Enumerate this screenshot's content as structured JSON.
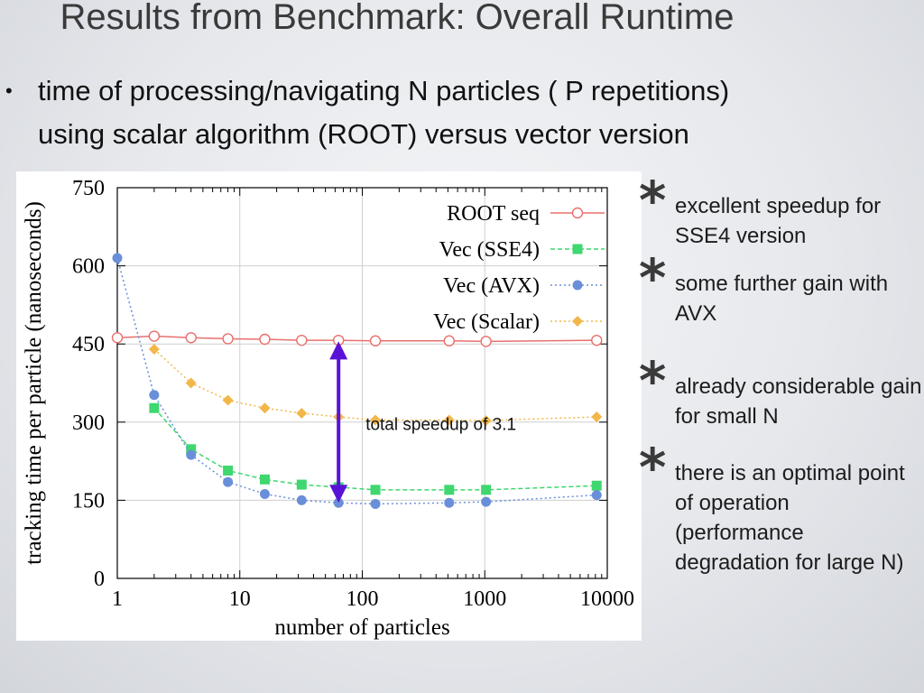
{
  "slide": {
    "title": "Results from Benchmark: Overall Runtime",
    "bullet_main": [
      "time of processing/navigating N particles ( P repetitions)",
      "using scalar algorithm (ROOT) versus vector version"
    ],
    "bullet_symbol": "•"
  },
  "side_bullets": [
    {
      "star": "*",
      "text": "excellent speedup for SSE4 version"
    },
    {
      "star": "*",
      "text": "some further gain with AVX"
    },
    {
      "star": "*",
      "text": "already considerable gain for small N"
    },
    {
      "star": "*",
      "text": "there is an optimal point of operation (performance degradation for large N)"
    }
  ],
  "chart_data": {
    "type": "line",
    "title": "",
    "xlabel": "number of particles",
    "ylabel": "tracking time per particle (nanoseconds)",
    "x_scale": "log",
    "xlim": [
      1,
      10000
    ],
    "ylim": [
      0,
      750
    ],
    "xticks": [
      {
        "v": 1,
        "label": "1"
      },
      {
        "v": 10,
        "label": "10"
      },
      {
        "v": 100,
        "label": "100"
      },
      {
        "v": 1000,
        "label": "1000"
      },
      {
        "v": 10000,
        "label": "10000"
      }
    ],
    "yticks": [
      {
        "v": 0,
        "label": "0"
      },
      {
        "v": 150,
        "label": "150"
      },
      {
        "v": 300,
        "label": "300"
      },
      {
        "v": 450,
        "label": "450"
      },
      {
        "v": 600,
        "label": "600"
      },
      {
        "v": 750,
        "label": "750"
      }
    ],
    "legend_position": "top-right",
    "series": [
      {
        "name": "ROOT seq",
        "color": "#e8706c",
        "marker": "open-circle",
        "points": [
          [
            1,
            462
          ],
          [
            2,
            465
          ],
          [
            4,
            462
          ],
          [
            8,
            460
          ],
          [
            16,
            459
          ],
          [
            32,
            457
          ],
          [
            64,
            457
          ],
          [
            128,
            456
          ],
          [
            512,
            456
          ],
          [
            1024,
            455
          ],
          [
            8192,
            457
          ]
        ]
      },
      {
        "name": "Vec (SSE4)",
        "color": "#3fd76f",
        "marker": "square",
        "points": [
          [
            2,
            327
          ],
          [
            4,
            248
          ],
          [
            8,
            207
          ],
          [
            16,
            190
          ],
          [
            32,
            180
          ],
          [
            64,
            175
          ],
          [
            128,
            170
          ],
          [
            512,
            170
          ],
          [
            1024,
            170
          ],
          [
            8192,
            178
          ]
        ]
      },
      {
        "name": "Vec (AVX)",
        "color": "#6a8fd9",
        "marker": "circle",
        "points": [
          [
            1,
            615
          ],
          [
            2,
            352
          ],
          [
            4,
            237
          ],
          [
            8,
            185
          ],
          [
            16,
            162
          ],
          [
            32,
            150
          ],
          [
            64,
            145
          ],
          [
            128,
            143
          ],
          [
            512,
            145
          ],
          [
            1024,
            147
          ],
          [
            8192,
            160
          ]
        ]
      },
      {
        "name": "Vec (Scalar)",
        "color": "#f2b74a",
        "marker": "diamond",
        "points": [
          [
            2,
            440
          ],
          [
            4,
            375
          ],
          [
            8,
            342
          ],
          [
            16,
            327
          ],
          [
            32,
            317
          ],
          [
            64,
            310
          ],
          [
            128,
            304
          ],
          [
            512,
            304
          ],
          [
            1024,
            303
          ],
          [
            8192,
            310
          ]
        ]
      }
    ],
    "annotation": {
      "text": "total speedup of 3.1",
      "arrow_x": 64,
      "arrow_from": 455,
      "arrow_to": 145,
      "arrow_color": "#5a13d6"
    }
  }
}
